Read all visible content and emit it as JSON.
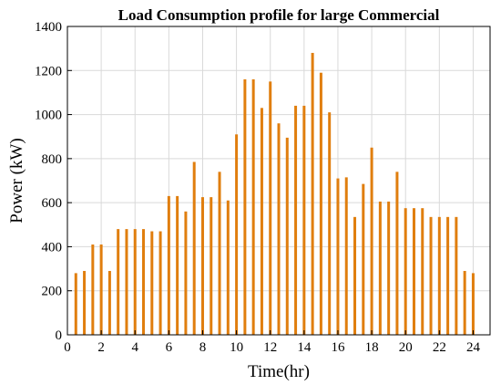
{
  "chart_data": {
    "type": "bar",
    "title": "Load Consumption profile for large Commercial",
    "xlabel": "Time(hr)",
    "ylabel": "Power (kW)",
    "xlim": [
      0,
      25
    ],
    "ylim": [
      0,
      1400
    ],
    "xticks": [
      0,
      2,
      4,
      6,
      8,
      10,
      12,
      14,
      16,
      18,
      20,
      22,
      24
    ],
    "yticks": [
      0,
      200,
      400,
      600,
      800,
      1000,
      1200,
      1400
    ],
    "grid": true,
    "color": "#e07e0e",
    "x": [
      0.5,
      1.0,
      1.5,
      2.0,
      2.5,
      3.0,
      3.5,
      4.0,
      4.5,
      5.0,
      5.5,
      6.0,
      6.5,
      7.0,
      7.5,
      8.0,
      8.5,
      9.0,
      9.5,
      10.0,
      10.5,
      11.0,
      11.5,
      12.0,
      12.5,
      13.0,
      13.5,
      14.0,
      14.5,
      15.0,
      15.5,
      16.0,
      16.5,
      17.0,
      17.5,
      18.0,
      18.5,
      19.0,
      19.5,
      20.0,
      20.5,
      21.0,
      21.5,
      22.0,
      22.5,
      23.0,
      23.5,
      24.0
    ],
    "values": [
      280,
      290,
      410,
      410,
      290,
      480,
      480,
      480,
      480,
      470,
      470,
      630,
      630,
      560,
      785,
      625,
      625,
      740,
      610,
      910,
      1160,
      1160,
      1030,
      1150,
      960,
      895,
      1040,
      1040,
      1280,
      1190,
      1010,
      710,
      715,
      535,
      685,
      850,
      605,
      605,
      740,
      575,
      575,
      575,
      535,
      535,
      535,
      535,
      290,
      280
    ]
  }
}
